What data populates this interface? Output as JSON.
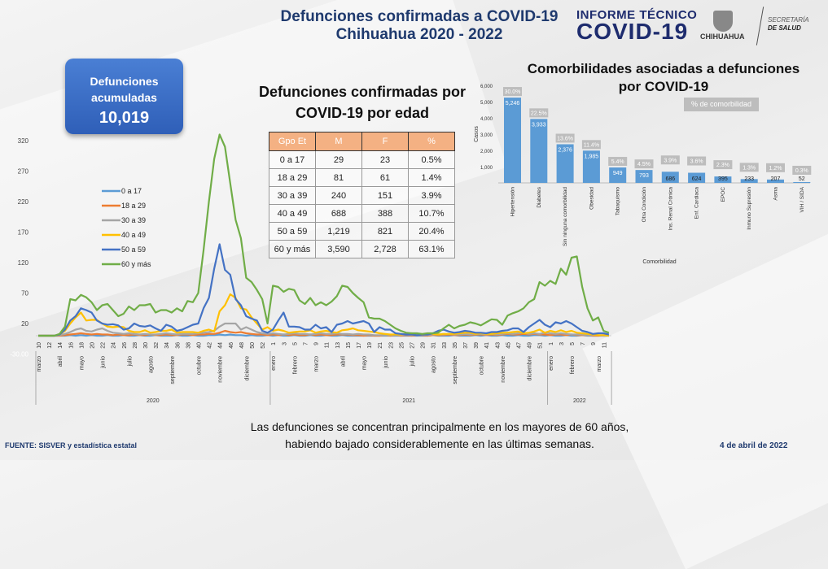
{
  "header": {
    "title_line1": "Defunciones confirmadas a COVID-19",
    "title_line2": "Chihuahua 2020 - 2022",
    "brand_line1": "INFORME TÉCNICO",
    "brand_line2": "COVID-19",
    "logo_state": "CHIHUAHUA",
    "logo_sec_line1": "SECRETARÍA",
    "logo_sec_line2": "DE SALUD"
  },
  "accumulated": {
    "label_line1": "Defunciones",
    "label_line2": "acumuladas",
    "value": "10,019",
    "color": "#3a6cc8"
  },
  "age_table": {
    "title_line1": "Defunciones confirmadas por",
    "title_line2": "COVID-19 por edad",
    "headers": [
      "Gpo Et",
      "M",
      "F",
      "%"
    ],
    "rows": [
      [
        "0 a 17",
        "29",
        "23",
        "0.5%"
      ],
      [
        "18 a 29",
        "81",
        "61",
        "1.4%"
      ],
      [
        "30 a 39",
        "240",
        "151",
        "3.9%"
      ],
      [
        "40 a 49",
        "688",
        "388",
        "10.7%"
      ],
      [
        "50 a 59",
        "1,219",
        "821",
        "20.4%"
      ],
      [
        "60 y más",
        "3,590",
        "2,728",
        "63.1%"
      ]
    ],
    "header_color": "#f4b183"
  },
  "footer": {
    "source": "FUENTE: SISVER y estadística estatal",
    "note_line1": "Las defunciones se concentran principalmente en los mayores de 60 años,",
    "note_line2": "habiendo bajado considerablemente en las últimas semanas.",
    "date": "4 de abril de 2022"
  },
  "chart_data": [
    {
      "type": "bar",
      "title": "Comorbilidades asociadas a defunciones por COVID-19",
      "title_line1": "Comorbilidades asociadas a defunciones",
      "title_line2": "por COVID-19",
      "xlabel": "Comorbilidad",
      "ylabel": "Casos",
      "ylim": [
        0,
        6000
      ],
      "yticks": [
        "1,000",
        "2,000",
        "3,000",
        "4,000",
        "5,000",
        "6,000"
      ],
      "legend": "% de comorbilidad",
      "bar_color": "#5b9bd5",
      "pct_color": "#bdbdbd",
      "categories": [
        "Hipertensión",
        "Diabetes",
        "Sin ninguna comorbilidad",
        "Obesidad",
        "Tabaquismo",
        "Otra Condición",
        "Ins. Renal Crónica",
        "Enf. Cardiaca",
        "EPOC",
        "Inmuno Supresión",
        "Asma",
        "VIH / SIDA"
      ],
      "values": [
        5246,
        3933,
        2376,
        1985,
        949,
        793,
        686,
        624,
        395,
        233,
        207,
        52
      ],
      "value_labels": [
        "5,246",
        "3,933",
        "2,376",
        "1,985",
        "949",
        "793",
        "686",
        "624",
        "395",
        "233",
        "207",
        "52"
      ],
      "pct_labels": [
        "30.0%",
        "22.5%",
        "13.6%",
        "11.4%",
        "5.4%",
        "4.5%",
        "3.9%",
        "3.6%",
        "2.3%",
        "1.3%",
        "1.2%",
        "0.3%"
      ]
    },
    {
      "type": "line",
      "ylim": [
        -30,
        330
      ],
      "yticks": [
        "320",
        "270",
        "220",
        "170",
        "120",
        "70",
        "20",
        "-30.00"
      ],
      "grid": false,
      "legend_position": "left",
      "x_weeks": {
        "2020": [
          10,
          53
        ],
        "2021": [
          1,
          52
        ],
        "2022": [
          1,
          12
        ]
      },
      "week_tick_labels": {
        "2020": [
          "10",
          "12",
          "14",
          "16",
          "18",
          "20",
          "22",
          "24",
          "26",
          "28",
          "30",
          "32",
          "34",
          "36",
          "38",
          "40",
          "42",
          "44",
          "46",
          "48",
          "50",
          "52"
        ],
        "2021": [
          "1",
          "3",
          "5",
          "7",
          "9",
          "11",
          "13",
          "15",
          "17",
          "19",
          "21",
          "23",
          "25",
          "27",
          "29",
          "31",
          "33",
          "35",
          "37",
          "39",
          "41",
          "43",
          "45",
          "47",
          "49",
          "51"
        ],
        "2022": [
          "1",
          "3",
          "5",
          "7",
          "9",
          "11"
        ]
      },
      "months": {
        "2020": [
          [
            "marzo",
            10
          ],
          [
            "abril",
            14
          ],
          [
            "mayo",
            18
          ],
          [
            "junio",
            22
          ],
          [
            "julio",
            27
          ],
          [
            "agosto",
            31
          ],
          [
            "septiembre",
            35
          ],
          [
            "octubre",
            40
          ],
          [
            "noviembre",
            44
          ],
          [
            "diciembre",
            49
          ]
        ],
        "2021": [
          [
            "enero",
            1
          ],
          [
            "febrero",
            5
          ],
          [
            "marzo",
            9
          ],
          [
            "abril",
            14
          ],
          [
            "mayo",
            18
          ],
          [
            "junio",
            22
          ],
          [
            "julio",
            27
          ],
          [
            "agosto",
            31
          ],
          [
            "septiembre",
            35
          ],
          [
            "octubre",
            40
          ],
          [
            "noviembre",
            44
          ],
          [
            "diciembre",
            49
          ]
        ],
        "2022": [
          [
            "enero",
            1
          ],
          [
            "febrero",
            5
          ],
          [
            "marzo",
            10
          ]
        ]
      },
      "years": [
        "2020",
        "2021",
        "2022"
      ],
      "series": [
        {
          "name": "0 a 17",
          "color": "#5b9bd5",
          "values": [
            0,
            0,
            0,
            0,
            0,
            0,
            1,
            0,
            1,
            0,
            1,
            0,
            0,
            1,
            0,
            0,
            1,
            0,
            0,
            1,
            0,
            0,
            1,
            0,
            0,
            0,
            1,
            0,
            0,
            1,
            0,
            0,
            1,
            1,
            2,
            1,
            2,
            1,
            1,
            0,
            1,
            0,
            0,
            1,
            0,
            1,
            0,
            0,
            1,
            0,
            0,
            1,
            0,
            0,
            1,
            0,
            0,
            1,
            0,
            0,
            0,
            0,
            0,
            0,
            0,
            0,
            0,
            0,
            0,
            0,
            0,
            0,
            0,
            0,
            1,
            0,
            0,
            0,
            1,
            0,
            0,
            0,
            1,
            0,
            1,
            0,
            0,
            1,
            0,
            0,
            1,
            0,
            0,
            1,
            1,
            0,
            1,
            0,
            0,
            1,
            0,
            0,
            1,
            0,
            0,
            0,
            0,
            0
          ]
        },
        {
          "name": "18 a 29",
          "color": "#ed7d31",
          "values": [
            0,
            0,
            0,
            0,
            0,
            1,
            2,
            3,
            4,
            3,
            2,
            3,
            2,
            2,
            1,
            2,
            1,
            1,
            2,
            1,
            1,
            2,
            1,
            1,
            2,
            1,
            1,
            2,
            2,
            1,
            2,
            2,
            3,
            3,
            5,
            8,
            6,
            5,
            6,
            4,
            3,
            2,
            2,
            1,
            2,
            1,
            2,
            1,
            2,
            1,
            1,
            2,
            1,
            2,
            1,
            1,
            2,
            2,
            2,
            1,
            1,
            0,
            1,
            0,
            0,
            1,
            0,
            1,
            0,
            1,
            0,
            1,
            1,
            0,
            1,
            1,
            1,
            2,
            1,
            1,
            2,
            1,
            2,
            2,
            1,
            2,
            1,
            2,
            3,
            2,
            2,
            3,
            2,
            3,
            2,
            2,
            1,
            2,
            2,
            1,
            2,
            1,
            1,
            1,
            0,
            0,
            1,
            0
          ]
        },
        {
          "name": "30 a 39",
          "color": "#a5a5a5",
          "values": [
            0,
            0,
            0,
            0,
            1,
            3,
            6,
            10,
            12,
            8,
            7,
            10,
            12,
            8,
            5,
            4,
            3,
            4,
            3,
            2,
            3,
            2,
            2,
            3,
            4,
            3,
            2,
            3,
            3,
            3,
            4,
            5,
            6,
            8,
            15,
            20,
            20,
            20,
            10,
            14,
            10,
            6,
            4,
            3,
            4,
            3,
            2,
            3,
            4,
            3,
            3,
            2,
            3,
            4,
            3,
            3,
            4,
            3,
            3,
            2,
            3,
            2,
            2,
            1,
            1,
            1,
            1,
            1,
            1,
            2,
            1,
            2,
            2,
            1,
            2,
            2,
            2,
            3,
            2,
            2,
            3,
            2,
            3,
            3,
            2,
            3,
            2,
            3,
            4,
            3,
            4,
            5,
            3,
            4,
            3,
            5,
            4,
            3,
            4,
            3,
            2,
            2,
            2,
            1,
            1,
            1,
            0,
            0
          ]
        },
        {
          "name": "40 a 49",
          "color": "#ffc000",
          "values": [
            0,
            0,
            0,
            0,
            2,
            8,
            20,
            30,
            38,
            25,
            26,
            26,
            20,
            15,
            14,
            15,
            14,
            8,
            6,
            6,
            9,
            5,
            6,
            8,
            8,
            10,
            5,
            6,
            6,
            6,
            5,
            8,
            10,
            7,
            40,
            50,
            68,
            62,
            45,
            43,
            30,
            20,
            10,
            14,
            8,
            10,
            8,
            5,
            6,
            7,
            7,
            9,
            5,
            7,
            8,
            6,
            5,
            9,
            10,
            12,
            9,
            8,
            7,
            6,
            4,
            3,
            2,
            2,
            2,
            3,
            4,
            2,
            2,
            3,
            3,
            2,
            3,
            3,
            3,
            4,
            5,
            5,
            3,
            4,
            3,
            3,
            4,
            5,
            5,
            6,
            7,
            4,
            5,
            7,
            10,
            5,
            8,
            6,
            9,
            6,
            8,
            5,
            4,
            3,
            2,
            1,
            1,
            0
          ]
        },
        {
          "name": "50 a 59",
          "color": "#4472c4",
          "values": [
            0,
            0,
            0,
            0,
            2,
            10,
            25,
            32,
            45,
            42,
            38,
            25,
            20,
            18,
            19,
            17,
            10,
            12,
            20,
            16,
            15,
            17,
            12,
            8,
            18,
            15,
            8,
            10,
            14,
            18,
            20,
            45,
            62,
            110,
            150,
            108,
            100,
            60,
            50,
            32,
            28,
            25,
            8,
            5,
            10,
            25,
            38,
            15,
            15,
            14,
            10,
            10,
            18,
            12,
            14,
            6,
            18,
            20,
            24,
            20,
            22,
            24,
            20,
            6,
            14,
            10,
            10,
            4,
            3,
            2,
            2,
            1,
            2,
            2,
            4,
            8,
            10,
            7,
            5,
            6,
            8,
            7,
            5,
            5,
            4,
            6,
            6,
            8,
            9,
            12,
            12,
            6,
            14,
            20,
            26,
            18,
            14,
            22,
            20,
            24,
            20,
            14,
            8,
            6,
            3,
            4,
            4,
            2
          ]
        },
        {
          "name": "60 y más",
          "color": "#70ad47",
          "values": [
            0,
            0,
            0,
            0,
            3,
            15,
            60,
            58,
            67,
            63,
            55,
            42,
            50,
            52,
            42,
            32,
            36,
            48,
            42,
            50,
            50,
            52,
            38,
            42,
            42,
            38,
            45,
            40,
            57,
            55,
            70,
            140,
            220,
            290,
            330,
            310,
            250,
            190,
            160,
            95,
            88,
            75,
            60,
            20,
            82,
            80,
            72,
            77,
            75,
            58,
            52,
            62,
            50,
            55,
            50,
            56,
            65,
            82,
            80,
            70,
            62,
            55,
            30,
            28,
            28,
            24,
            18,
            12,
            8,
            5,
            4,
            4,
            3,
            4,
            4,
            5,
            12,
            18,
            12,
            16,
            18,
            22,
            20,
            17,
            22,
            27,
            26,
            18,
            33,
            37,
            40,
            45,
            55,
            60,
            88,
            82,
            90,
            85,
            110,
            100,
            128,
            130,
            80,
            45,
            25,
            30,
            8,
            5
          ]
        }
      ]
    }
  ]
}
